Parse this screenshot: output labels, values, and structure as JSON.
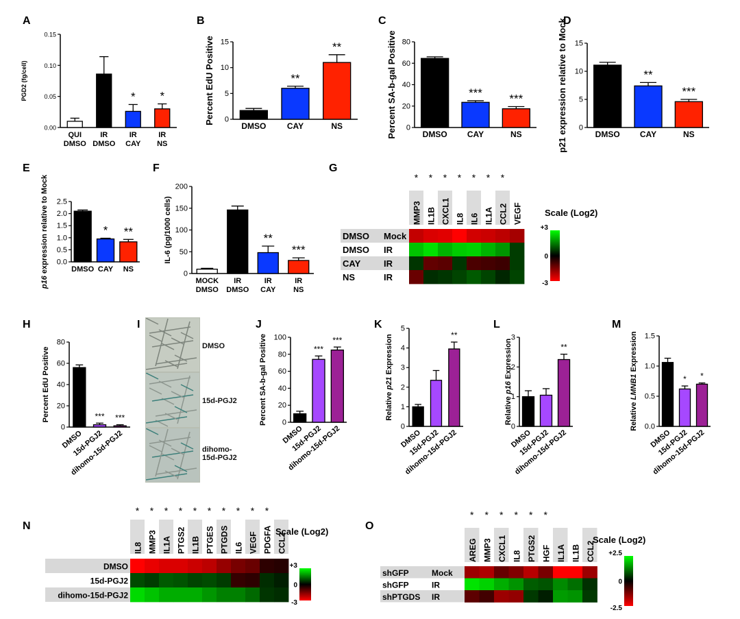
{
  "colors": {
    "black": "#000000",
    "blue": "#0a39ff",
    "red": "#ff2200",
    "purple": "#a648ff",
    "magenta": "#9c2196",
    "white": "#ffffff"
  },
  "chart_data": [
    {
      "panel": "A",
      "type": "bar",
      "ylabel": "PGD2 (fg/cell)",
      "ylim": [
        0,
        0.15
      ],
      "ticks": [
        "0.00",
        "0.05",
        "0.10",
        "0.15"
      ],
      "tickValues": [
        0,
        0.05,
        0.1,
        0.15
      ],
      "categories": [
        [
          "QUI",
          "DMSO"
        ],
        [
          "IR",
          "DMSO"
        ],
        [
          "IR",
          "CAY"
        ],
        [
          "IR",
          "NS"
        ]
      ],
      "values": [
        0.01,
        0.086,
        0.026,
        0.03
      ],
      "errors": [
        0.005,
        0.028,
        0.011,
        0.008
      ],
      "colors": [
        "white",
        "black",
        "blue",
        "red"
      ],
      "sig": [
        "",
        "",
        "*",
        "*"
      ]
    },
    {
      "panel": "B",
      "type": "bar",
      "ylabel": "Percent EdU Positive",
      "ylim": [
        0,
        15
      ],
      "ticks": [
        "0",
        "5",
        "10",
        "15"
      ],
      "tickValues": [
        0,
        5,
        10,
        15
      ],
      "categories": [
        [
          "DMSO"
        ],
        [
          "CAY"
        ],
        [
          "NS"
        ]
      ],
      "values": [
        1.7,
        6.0,
        11.0
      ],
      "errors": [
        0.4,
        0.4,
        1.5
      ],
      "colors": [
        "black",
        "blue",
        "red"
      ],
      "sig": [
        "",
        "**",
        "**"
      ]
    },
    {
      "panel": "C",
      "type": "bar",
      "ylabel": "Percent SA-b-gal Positive",
      "ylim": [
        0,
        80
      ],
      "ticks": [
        "0",
        "20",
        "40",
        "60",
        "80"
      ],
      "tickValues": [
        0,
        20,
        40,
        60,
        80
      ],
      "categories": [
        [
          "DMSO"
        ],
        [
          "CAY"
        ],
        [
          "NS"
        ]
      ],
      "values": [
        64.5,
        23.5,
        17.5
      ],
      "errors": [
        1.5,
        1.5,
        2.0
      ],
      "colors": [
        "black",
        "blue",
        "red"
      ],
      "sig": [
        "",
        "***",
        "***"
      ]
    },
    {
      "panel": "D",
      "type": "bar",
      "ylabel": "p21 expression relative to Mock",
      "ylim": [
        0,
        15
      ],
      "ticks": [
        "0",
        "5",
        "10",
        "15"
      ],
      "tickValues": [
        0,
        5,
        10,
        15
      ],
      "categories": [
        [
          "DMSO"
        ],
        [
          "CAY"
        ],
        [
          "NS"
        ]
      ],
      "values": [
        11.1,
        7.4,
        4.6
      ],
      "errors": [
        0.5,
        0.6,
        0.4
      ],
      "colors": [
        "black",
        "blue",
        "red"
      ],
      "sig": [
        "",
        "**",
        "***"
      ]
    },
    {
      "panel": "E",
      "type": "bar",
      "ylabel": "p16 expression relative to Mock",
      "ylim": [
        0,
        2.5
      ],
      "ticks": [
        "0.0",
        "0.5",
        "1.0",
        "1.5",
        "2.0",
        "2.5"
      ],
      "tickValues": [
        0,
        0.5,
        1,
        1.5,
        2,
        2.5
      ],
      "categories": [
        [
          "DMSO"
        ],
        [
          "CAY"
        ],
        [
          "NS"
        ]
      ],
      "values": [
        2.1,
        0.95,
        0.83
      ],
      "errors": [
        0.05,
        0.03,
        0.1
      ],
      "colors": [
        "black",
        "blue",
        "red"
      ],
      "sig": [
        "",
        "*",
        "**"
      ]
    },
    {
      "panel": "F",
      "type": "bar",
      "ylabel": "IL-6 (pg/1000 cells)",
      "ylim": [
        0,
        200
      ],
      "ticks": [
        "0",
        "50",
        "100",
        "150",
        "200"
      ],
      "tickValues": [
        0,
        50,
        100,
        150,
        200
      ],
      "categories": [
        [
          "MOCK",
          "DMSO"
        ],
        [
          "IR",
          "DMSO"
        ],
        [
          "IR",
          "CAY"
        ],
        [
          "IR",
          "NS"
        ]
      ],
      "values": [
        10,
        146,
        48,
        30
      ],
      "errors": [
        2,
        9,
        15,
        6
      ],
      "colors": [
        "white",
        "black",
        "blue",
        "red"
      ],
      "sig": [
        "",
        "",
        "**",
        "***"
      ]
    },
    {
      "panel": "H",
      "type": "bar",
      "ylabel": "Percent EdU Positive",
      "ylim": [
        0,
        80
      ],
      "ticks": [
        "0",
        "20",
        "40",
        "60",
        "80"
      ],
      "tickValues": [
        0,
        20,
        40,
        60,
        80
      ],
      "categories": [
        [
          "DMSO"
        ],
        [
          "15d-PGJ2"
        ],
        [
          "dihomo-15d-PGJ2"
        ]
      ],
      "values": [
        56,
        2.2,
        1.2
      ],
      "errors": [
        2.5,
        1.5,
        1.0
      ],
      "colors": [
        "black",
        "purple",
        "magenta"
      ],
      "sig": [
        "",
        "***",
        "***"
      ]
    },
    {
      "panel": "J",
      "type": "bar",
      "ylabel": "Percent SA-b-gal Positive",
      "ylim": [
        0,
        100
      ],
      "ticks": [
        "0",
        "20",
        "40",
        "60",
        "80",
        "100"
      ],
      "tickValues": [
        0,
        20,
        40,
        60,
        80,
        100
      ],
      "categories": [
        [
          "DMSO"
        ],
        [
          "15d-PGJ2"
        ],
        [
          "dihomo-15d-PGJ2"
        ]
      ],
      "values": [
        10,
        74,
        85
      ],
      "errors": [
        3,
        4,
        3.5
      ],
      "colors": [
        "black",
        "purple",
        "magenta"
      ],
      "sig": [
        "",
        "***",
        "***"
      ]
    },
    {
      "panel": "K",
      "type": "bar",
      "ylabel": "Relative p21 Expression",
      "ylim": [
        0,
        5
      ],
      "ticks": [
        "0",
        "1",
        "2",
        "3",
        "4",
        "5"
      ],
      "tickValues": [
        0,
        1,
        2,
        3,
        4,
        5
      ],
      "categories": [
        [
          "DMSO"
        ],
        [
          "15d-PGJ2"
        ],
        [
          "dihomo-15d-PGJ2"
        ]
      ],
      "values": [
        1.0,
        2.35,
        3.95
      ],
      "errors": [
        0.12,
        0.5,
        0.35
      ],
      "colors": [
        "black",
        "purple",
        "magenta"
      ],
      "sig": [
        "",
        "",
        "**"
      ]
    },
    {
      "panel": "L",
      "type": "bar",
      "ylabel": "Relative p16 Expression",
      "ylim": [
        0,
        3
      ],
      "ticks": [
        "0",
        "1",
        "2",
        "3"
      ],
      "tickValues": [
        0,
        1,
        2,
        3
      ],
      "categories": [
        [
          "DMSO"
        ],
        [
          "15d-PGJ2"
        ],
        [
          "dihomo-15d-PGJ2"
        ]
      ],
      "values": [
        1.0,
        1.05,
        2.25
      ],
      "errors": [
        0.2,
        0.22,
        0.18
      ],
      "colors": [
        "black",
        "purple",
        "magenta"
      ],
      "sig": [
        "",
        "",
        "**"
      ]
    },
    {
      "panel": "M",
      "type": "bar",
      "ylabel": "Relative LMNB1 Expression",
      "ylim": [
        0,
        1.5
      ],
      "ticks": [
        "0.0",
        "0.5",
        "1.0",
        "1.5"
      ],
      "tickValues": [
        0,
        0.5,
        1,
        1.5
      ],
      "categories": [
        [
          "DMSO"
        ],
        [
          "15d-PGJ2"
        ],
        [
          "dihomo-15d-PGJ2"
        ]
      ],
      "values": [
        1.06,
        0.62,
        0.7
      ],
      "errors": [
        0.07,
        0.05,
        0.02
      ],
      "colors": [
        "black",
        "purple",
        "magenta"
      ],
      "sig": [
        "",
        "*",
        "*"
      ]
    },
    {
      "panel": "G",
      "type": "heatmap",
      "scaleTitle": "Scale (Log2)",
      "scaleTop": "+3",
      "scaleMid": "0",
      "scaleBottom": "-3",
      "columns": [
        "MMP3",
        "IL1B",
        "CXCL1",
        "IL8",
        "IL6",
        "IL1A",
        "CCL2",
        "VEGF"
      ],
      "sig": [
        "*",
        "*",
        "*",
        "*",
        "*",
        "*",
        "*",
        ""
      ],
      "rows": [
        [
          "DMSO",
          "Mock"
        ],
        [
          "DMSO",
          "IR"
        ],
        [
          "CAY",
          "IR"
        ],
        [
          "NS",
          "IR"
        ]
      ],
      "values": [
        [
          -2.2,
          -2.5,
          -2.6,
          -3,
          -2.4,
          -2.3,
          -2.1,
          -1.8
        ],
        [
          2.2,
          2.6,
          2.0,
          2.3,
          2.4,
          2.0,
          1.6,
          0.4
        ],
        [
          0.3,
          -0.9,
          -0.8,
          0.3,
          -0.6,
          -0.5,
          -0.4,
          0.4
        ],
        [
          -1.0,
          0.2,
          0.3,
          0.5,
          0.8,
          0.5,
          0.1,
          0.5
        ]
      ]
    },
    {
      "panel": "N",
      "type": "heatmap",
      "scaleTitle": "Scale (Log2)",
      "scaleTop": "+3",
      "scaleMid": "0",
      "scaleBottom": "-3",
      "columns": [
        "IL8",
        "MMP3",
        "IL1A",
        "PTGS2",
        "IL1B",
        "PTGES",
        "PTGDS",
        "IL6",
        "VEGF",
        "PDGFA",
        "CCL2"
      ],
      "sig": [
        "*",
        "*",
        "*",
        "*",
        "*",
        "*",
        "*",
        "*",
        "*",
        "*",
        ""
      ],
      "rows": [
        [
          "DMSO"
        ],
        [
          "15d-PGJ2"
        ],
        [
          "dihomo-15d-PGJ2"
        ]
      ],
      "values": [
        [
          -3,
          -2.7,
          -2.5,
          -2.5,
          -2.3,
          -2.1,
          -1.6,
          -1.2,
          -1.0,
          -0.2,
          -0.1
        ],
        [
          0.6,
          0.4,
          0.8,
          0.7,
          0.5,
          0.6,
          0.4,
          -0.3,
          -0.2,
          0.2,
          0
        ],
        [
          2.5,
          2.2,
          1.9,
          1.9,
          1.9,
          1.6,
          1.3,
          1.3,
          1.0,
          0.3,
          0.2
        ]
      ]
    },
    {
      "panel": "O",
      "type": "heatmap",
      "scaleTitle": "Scale (Log2)",
      "scaleTop": "+2.5",
      "scaleMid": "0",
      "scaleBottom": "-2.5",
      "columns": [
        "AREG",
        "MMP3",
        "CXCL1",
        "IL8",
        "PTGS2",
        "HGF",
        "IL1A",
        "IL1B",
        "CCL2"
      ],
      "sig": [
        "*",
        "*",
        "*",
        "*",
        "*",
        "*",
        "",
        "",
        ""
      ],
      "rows": [
        [
          "shGFP",
          "Mock"
        ],
        [
          "shGFP",
          "IR"
        ],
        [
          "shPTGDS",
          "IR"
        ]
      ],
      "values": [
        [
          -1.4,
          -1.6,
          -0.8,
          -1.1,
          -1.7,
          -1.0,
          -2.5,
          -2.5,
          -1.4
        ],
        [
          2.2,
          2.0,
          1.6,
          1.3,
          0.7,
          0.6,
          1.2,
          0.9,
          0.2
        ],
        [
          -0.7,
          -0.4,
          -1.4,
          -1.3,
          0.3,
          0,
          1.4,
          1.3,
          0.3
        ]
      ]
    }
  ],
  "micrographs": {
    "panel": "I",
    "labels": [
      "DMSO",
      "15d-PGJ2",
      "dihomo-15d-PGJ2"
    ]
  }
}
